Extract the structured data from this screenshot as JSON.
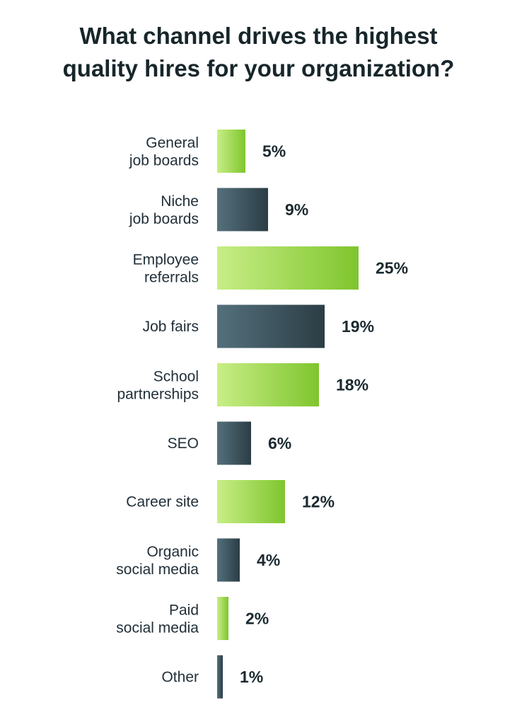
{
  "chart_data": {
    "type": "bar",
    "orientation": "horizontal",
    "title_lines": [
      "What channel drives the highest",
      "quality hires for your organization?"
    ],
    "categories": [
      [
        "General",
        "job boards"
      ],
      [
        "Niche",
        "job boards"
      ],
      [
        "Employee",
        "referrals"
      ],
      [
        "Job fairs"
      ],
      [
        "School",
        "partnerships"
      ],
      [
        "SEO"
      ],
      [
        "Career site"
      ],
      [
        "Organic",
        "social media"
      ],
      [
        "Paid",
        "social media"
      ],
      [
        "Other"
      ]
    ],
    "values": [
      5,
      9,
      25,
      19,
      18,
      6,
      12,
      4,
      2,
      1
    ],
    "value_labels": [
      "5%",
      "9%",
      "25%",
      "19%",
      "18%",
      "6%",
      "12%",
      "4%",
      "2%",
      "1%"
    ],
    "unit": "%",
    "xlim": [
      0,
      25
    ],
    "grid": false,
    "legend": "none",
    "colors": {
      "green_light": "#c8ee86",
      "green_dark": "#7fc52e",
      "slate_light": "#54707c",
      "slate_dark": "#2b3d45"
    },
    "bar_color_pattern": [
      "green",
      "slate"
    ]
  }
}
